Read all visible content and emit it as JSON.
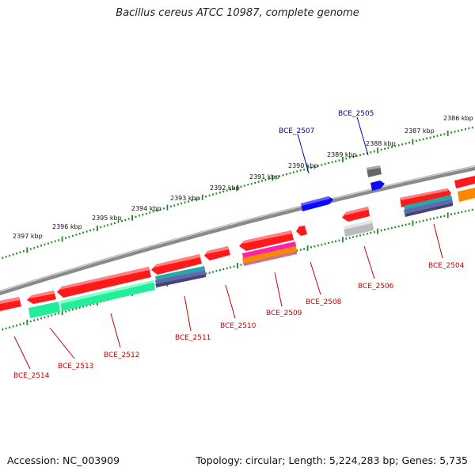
{
  "title": "Bacillus cereus ATCC 10987, complete genome",
  "footer": {
    "accession_label": "Accession:",
    "accession": "NC_003909",
    "topology_label": "Topology:",
    "topology": "circular",
    "length_label": "Length:",
    "length": "5,224,283 bp",
    "genes_label": "Genes:",
    "genes": "5,735"
  },
  "kbp_ticks": [
    "2386 kbp",
    "2387 kbp",
    "2388 kbp",
    "2389 kbp",
    "2390 kbp",
    "2391 kbp",
    "2392 kbp",
    "2393 kbp",
    "2394 kbp",
    "2395 kbp",
    "2396 kbp",
    "2397 kbp"
  ],
  "genes": [
    {
      "id": "BCE_2504",
      "strand": "-",
      "color": "#ff1111",
      "label_color": "#cc0000"
    },
    {
      "id": "BCE_2505",
      "strand": "+",
      "color": "#0000ff",
      "label_color": "#000099"
    },
    {
      "id": "BCE_2506",
      "strand": "-",
      "color": "#ff1111",
      "label_color": "#cc0000"
    },
    {
      "id": "BCE_2507",
      "strand": "+",
      "color": "#0000ff",
      "label_color": "#000099"
    },
    {
      "id": "BCE_2508",
      "strand": "-",
      "color": "#ff1111",
      "label_color": "#cc0000"
    },
    {
      "id": "BCE_2509",
      "strand": "-",
      "color": "#ff1111",
      "label_color": "#cc0000"
    },
    {
      "id": "BCE_2510",
      "strand": "-",
      "color": "#ff1111",
      "label_color": "#cc0000"
    },
    {
      "id": "BCE_2511",
      "strand": "-",
      "color": "#ff1111",
      "label_color": "#cc0000"
    },
    {
      "id": "BCE_2512",
      "strand": "-",
      "color": "#ff1111",
      "label_color": "#cc0000"
    },
    {
      "id": "BCE_2513",
      "strand": "-",
      "color": "#ff1111",
      "label_color": "#cc0000"
    },
    {
      "id": "BCE_2514",
      "strand": "-",
      "color": "#ff1111",
      "label_color": "#cc0000"
    }
  ],
  "colors": {
    "backbone": "#7a7a7a",
    "ticks": "#1a8a1a",
    "gene_minus": "#ff1111",
    "gene_plus": "#0000ff",
    "feature_green": "#22ee99",
    "feature_orange": "#ff8800",
    "feature_gray": "#bbbbbb"
  }
}
